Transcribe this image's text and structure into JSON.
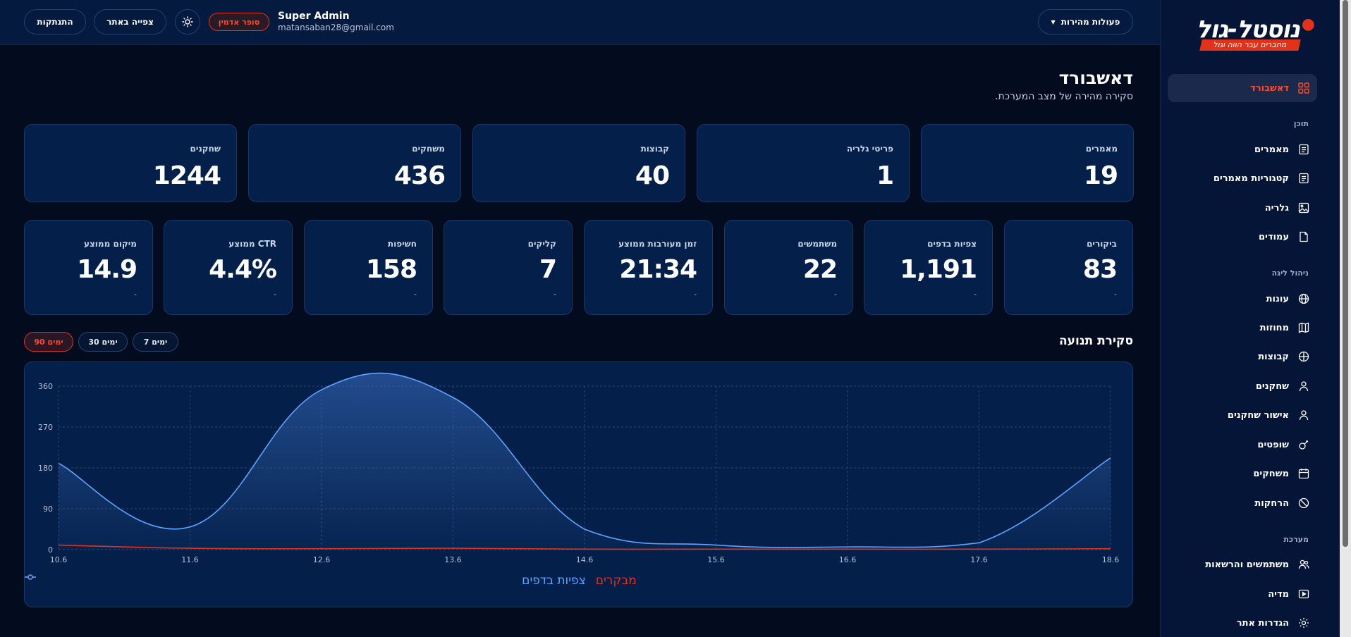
{
  "header": {
    "logout_label": "התנתקות",
    "view_site_label": "צפייה באתר",
    "role_badge": "סופר אדמין",
    "user_name": "Super Admin",
    "user_email": "matansaban28@gmail.com",
    "quick_actions_label": "פעולות מהירות"
  },
  "page": {
    "title": "דאשבורד",
    "subtitle": "סקירה מהירה של מצב המערכת."
  },
  "stats_top": [
    {
      "label": "מאמרים",
      "value": "19"
    },
    {
      "label": "פריטי גלריה",
      "value": "1"
    },
    {
      "label": "קבוצות",
      "value": "40"
    },
    {
      "label": "משחקים",
      "value": "436"
    },
    {
      "label": "שחקנים",
      "value": "1244"
    }
  ],
  "stats_bottom": [
    {
      "label": "ביקורים",
      "value": "83",
      "sub": "-"
    },
    {
      "label": "צפיות בדפים",
      "value": "1,191",
      "sub": "-"
    },
    {
      "label": "משתמשים",
      "value": "22",
      "sub": "-"
    },
    {
      "label": "זמן מעורבות ממוצע",
      "value": "21:34",
      "sub": "-"
    },
    {
      "label": "קליקים",
      "value": "7",
      "sub": "-"
    },
    {
      "label": "חשיפות",
      "value": "158",
      "sub": "-"
    },
    {
      "label": "CTR ממוצע",
      "value": "4.4%",
      "sub": "-"
    },
    {
      "label": "מיקום ממוצע",
      "value": "14.9",
      "sub": "-"
    }
  ],
  "traffic": {
    "title": "סקירת תנועה",
    "ranges": [
      "7 ימים",
      "30 ימים",
      "90 ימים"
    ],
    "active_range": "90 ימים"
  },
  "chart_data": {
    "type": "area",
    "x": [
      "10.6",
      "11.6",
      "12.6",
      "13.6",
      "14.6",
      "15.6",
      "16.6",
      "17.6",
      "18.6"
    ],
    "ylim": [
      0,
      360
    ],
    "yticks": [
      0,
      90,
      180,
      270,
      360
    ],
    "grid": true,
    "legend_position": "bottom",
    "series": [
      {
        "name": "צפיות בדפים",
        "color": "#5ea3ff",
        "values": [
          190,
          50,
          352,
          335,
          45,
          10,
          6,
          15,
          202
        ]
      },
      {
        "name": "מבקרים",
        "color": "#e3321a",
        "values": [
          10,
          3,
          2,
          3,
          1,
          1,
          1,
          1,
          2
        ]
      }
    ]
  },
  "sidebar": {
    "logo_text": "נוסטל-גול",
    "logo_tagline": "מחברים עבר הווה וגול",
    "active_item": "דאשבורד",
    "sections": {
      "content": "תוכן",
      "league": "ניהול ליגה",
      "system": "מערכת"
    },
    "items": [
      {
        "label": "דאשבורד",
        "icon": "grid-icon"
      },
      {
        "label": "מאמרים",
        "icon": "document-icon"
      },
      {
        "label": "קטגוריות מאמרים",
        "icon": "document-list-icon"
      },
      {
        "label": "גלריה",
        "icon": "image-icon"
      },
      {
        "label": "עמודים",
        "icon": "file-icon"
      },
      {
        "label": "עונות",
        "icon": "globe-icon"
      },
      {
        "label": "מחוזות",
        "icon": "map-icon"
      },
      {
        "label": "קבוצות",
        "icon": "crosshair-icon"
      },
      {
        "label": "שחקנים",
        "icon": "user-icon"
      },
      {
        "label": "אישור שחקנים",
        "icon": "user-check-icon"
      },
      {
        "label": "שופטים",
        "icon": "whistle-icon"
      },
      {
        "label": "משחקים",
        "icon": "calendar-icon"
      },
      {
        "label": "הרחקות",
        "icon": "ban-icon"
      },
      {
        "label": "משתמשים והרשאות",
        "icon": "users-icon"
      },
      {
        "label": "מדיה",
        "icon": "play-icon"
      },
      {
        "label": "הגדרות אתר",
        "icon": "gear-icon"
      }
    ]
  }
}
